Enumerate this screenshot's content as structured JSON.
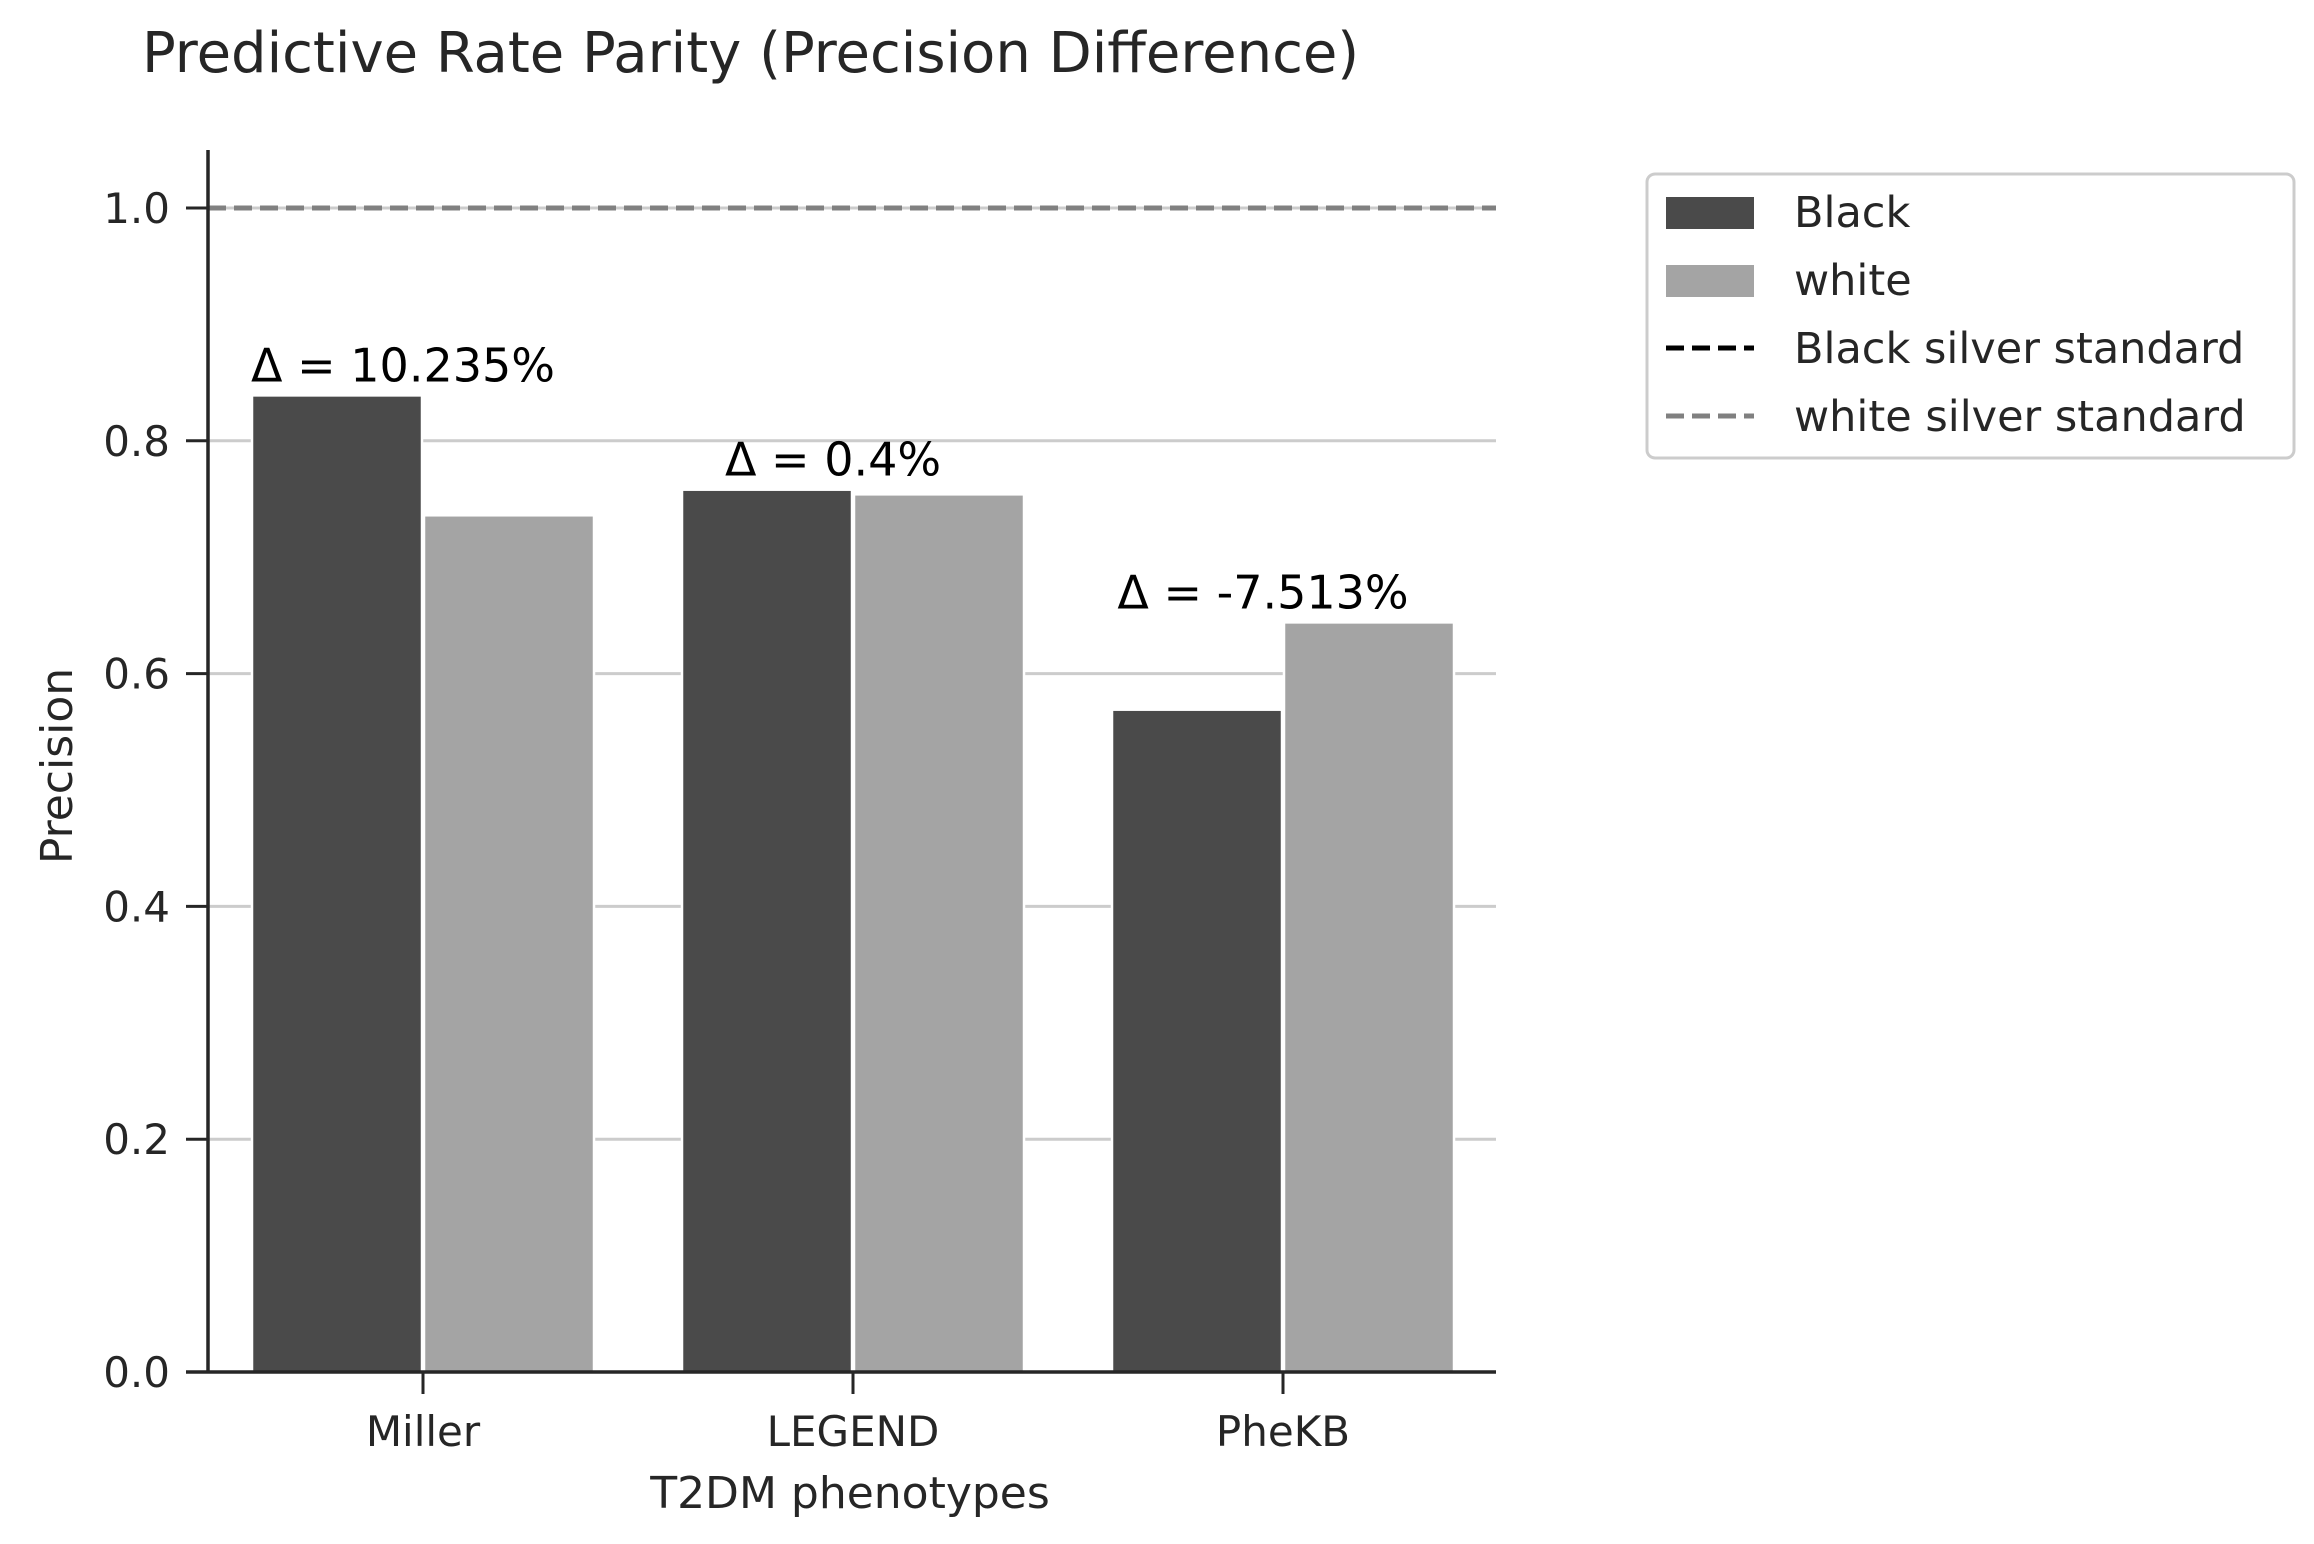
{
  "chart_data": {
    "type": "bar",
    "title": "Predictive Rate Parity (Precision Difference)",
    "xlabel": "T2DM phenotypes",
    "ylabel": "Precision",
    "categories": [
      "Miller",
      "LEGEND",
      "PheKB"
    ],
    "series": [
      {
        "name": "Black",
        "values": [
          0.839,
          0.758,
          0.569
        ],
        "color": "#4a4a4a"
      },
      {
        "name": "white",
        "values": [
          0.736,
          0.754,
          0.644
        ],
        "color": "#a4a4a4"
      }
    ],
    "reference_lines": [
      {
        "name": "Black silver standard",
        "value": 1.0,
        "color": "#000000",
        "style": "dashed"
      },
      {
        "name": "white silver standard",
        "value": 1.0,
        "color": "#808080",
        "style": "dashed"
      }
    ],
    "annotations": [
      "Δ = 10.235%",
      "Δ = 0.4%",
      "Δ = -7.513%"
    ],
    "yticks": [
      "0.0",
      "0.2",
      "0.4",
      "0.6",
      "0.8",
      "1.0"
    ],
    "ylim": [
      0,
      1.05
    ],
    "grid": "horizontal",
    "legend_position": "outside-top-right"
  }
}
